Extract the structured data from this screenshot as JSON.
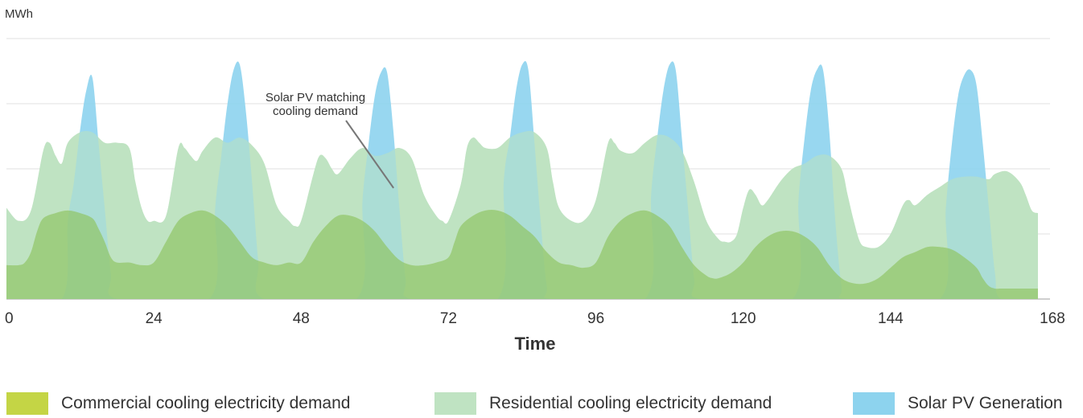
{
  "chart_data": {
    "type": "area",
    "ylabel": "MWh",
    "xlabel": "Time",
    "xlim": [
      0,
      168
    ],
    "ylim": [
      0,
      100
    ],
    "x_ticks": [
      "0",
      "24",
      "48",
      "72",
      "96",
      "120",
      "144",
      "168"
    ],
    "grid": true,
    "legend_position": "bottom",
    "annotation": {
      "text_lines": [
        "Solar PV matching",
        "cooling demand"
      ],
      "point": [
        62,
        38
      ]
    },
    "series": [
      {
        "name": "Solar PV Generation",
        "color": "#8dd3ee",
        "points": [
          [
            0,
            0
          ],
          [
            9,
            0
          ],
          [
            10,
            30
          ],
          [
            11,
            45
          ],
          [
            12,
            65
          ],
          [
            13,
            80
          ],
          [
            14,
            85
          ],
          [
            15,
            60
          ],
          [
            16,
            35
          ],
          [
            17,
            10
          ],
          [
            18,
            0
          ],
          [
            33,
            0
          ],
          [
            34,
            35
          ],
          [
            35,
            55
          ],
          [
            36,
            75
          ],
          [
            37,
            88
          ],
          [
            38,
            90
          ],
          [
            39,
            72
          ],
          [
            40,
            45
          ],
          [
            41,
            15
          ],
          [
            42,
            0
          ],
          [
            57,
            0
          ],
          [
            58,
            38
          ],
          [
            59,
            60
          ],
          [
            60,
            78
          ],
          [
            61,
            87
          ],
          [
            62,
            87
          ],
          [
            63,
            65
          ],
          [
            64,
            35
          ],
          [
            65,
            8
          ],
          [
            66,
            0
          ],
          [
            80,
            0
          ],
          [
            81,
            45
          ],
          [
            82,
            62
          ],
          [
            83,
            80
          ],
          [
            84,
            90
          ],
          [
            85,
            88
          ],
          [
            86,
            60
          ],
          [
            87,
            30
          ],
          [
            88,
            5
          ],
          [
            89,
            0
          ],
          [
            104,
            0
          ],
          [
            105,
            40
          ],
          [
            106,
            62
          ],
          [
            107,
            80
          ],
          [
            108,
            90
          ],
          [
            109,
            88
          ],
          [
            110,
            62
          ],
          [
            111,
            35
          ],
          [
            112,
            8
          ],
          [
            113,
            0
          ],
          [
            128,
            0
          ],
          [
            129,
            38
          ],
          [
            130,
            62
          ],
          [
            131,
            80
          ],
          [
            132,
            88
          ],
          [
            133,
            88
          ],
          [
            134,
            65
          ],
          [
            135,
            30
          ],
          [
            136,
            5
          ],
          [
            137,
            0
          ],
          [
            152,
            0
          ],
          [
            153,
            35
          ],
          [
            154,
            60
          ],
          [
            155,
            78
          ],
          [
            156,
            86
          ],
          [
            157,
            88
          ],
          [
            158,
            82
          ],
          [
            159,
            60
          ],
          [
            160,
            35
          ],
          [
            161,
            10
          ],
          [
            162,
            0
          ],
          [
            168,
            0
          ]
        ]
      },
      {
        "name": "Residential cooling electricity demand",
        "color": "#bfe3c2",
        "points": [
          [
            0,
            35
          ],
          [
            2,
            30
          ],
          [
            4,
            34
          ],
          [
            6,
            57
          ],
          [
            7,
            60
          ],
          [
            8,
            55
          ],
          [
            9,
            52
          ],
          [
            10,
            60
          ],
          [
            12,
            64
          ],
          [
            14,
            64
          ],
          [
            16,
            60
          ],
          [
            18,
            60
          ],
          [
            20,
            58
          ],
          [
            21,
            45
          ],
          [
            22,
            35
          ],
          [
            23,
            30
          ],
          [
            24,
            30
          ],
          [
            26,
            32
          ],
          [
            28,
            58
          ],
          [
            29,
            58
          ],
          [
            30,
            55
          ],
          [
            31,
            53
          ],
          [
            32,
            57
          ],
          [
            34,
            62
          ],
          [
            36,
            60
          ],
          [
            38,
            62
          ],
          [
            40,
            59
          ],
          [
            42,
            52
          ],
          [
            44,
            36
          ],
          [
            46,
            30
          ],
          [
            47,
            28
          ],
          [
            48,
            30
          ],
          [
            50,
            48
          ],
          [
            51,
            55
          ],
          [
            52,
            54
          ],
          [
            53,
            50
          ],
          [
            54,
            48
          ],
          [
            56,
            54
          ],
          [
            58,
            58
          ],
          [
            60,
            55
          ],
          [
            62,
            56
          ],
          [
            64,
            58
          ],
          [
            66,
            54
          ],
          [
            68,
            40
          ],
          [
            70,
            32
          ],
          [
            71,
            30
          ],
          [
            72,
            30
          ],
          [
            74,
            44
          ],
          [
            75,
            58
          ],
          [
            76,
            62
          ],
          [
            77,
            60
          ],
          [
            78,
            58
          ],
          [
            80,
            58
          ],
          [
            82,
            62
          ],
          [
            84,
            64
          ],
          [
            86,
            64
          ],
          [
            88,
            58
          ],
          [
            89,
            45
          ],
          [
            90,
            35
          ],
          [
            92,
            30
          ],
          [
            94,
            30
          ],
          [
            96,
            38
          ],
          [
            98,
            60
          ],
          [
            99,
            60
          ],
          [
            100,
            57
          ],
          [
            102,
            56
          ],
          [
            104,
            60
          ],
          [
            106,
            63
          ],
          [
            108,
            62
          ],
          [
            110,
            57
          ],
          [
            112,
            45
          ],
          [
            114,
            30
          ],
          [
            116,
            23
          ],
          [
            117,
            22
          ],
          [
            118,
            22
          ],
          [
            119,
            25
          ],
          [
            120,
            35
          ],
          [
            121,
            42
          ],
          [
            122,
            40
          ],
          [
            123,
            36
          ],
          [
            124,
            38
          ],
          [
            126,
            45
          ],
          [
            128,
            50
          ],
          [
            130,
            52
          ],
          [
            132,
            55
          ],
          [
            134,
            55
          ],
          [
            136,
            50
          ],
          [
            137,
            40
          ],
          [
            138,
            30
          ],
          [
            139,
            22
          ],
          [
            140,
            20
          ],
          [
            142,
            20
          ],
          [
            144,
            25
          ],
          [
            146,
            36
          ],
          [
            147,
            38
          ],
          [
            148,
            36
          ],
          [
            150,
            40
          ],
          [
            152,
            43
          ],
          [
            154,
            46
          ],
          [
            156,
            47
          ],
          [
            158,
            47
          ],
          [
            160,
            46
          ],
          [
            161,
            48
          ],
          [
            163,
            49
          ],
          [
            165,
            45
          ],
          [
            166,
            40
          ],
          [
            167,
            34
          ],
          [
            168,
            33
          ]
        ]
      },
      {
        "name": "Commercial cooling electricity demand",
        "color": "#c4d545",
        "points": [
          [
            0,
            13
          ],
          [
            2,
            13
          ],
          [
            3,
            14
          ],
          [
            4,
            18
          ],
          [
            5,
            26
          ],
          [
            6,
            31
          ],
          [
            8,
            33
          ],
          [
            10,
            34
          ],
          [
            12,
            33
          ],
          [
            14,
            31
          ],
          [
            15,
            27
          ],
          [
            16,
            22
          ],
          [
            17,
            16
          ],
          [
            18,
            14
          ],
          [
            20,
            14
          ],
          [
            22,
            13
          ],
          [
            24,
            14
          ],
          [
            26,
            22
          ],
          [
            28,
            30
          ],
          [
            30,
            33
          ],
          [
            32,
            34
          ],
          [
            34,
            32
          ],
          [
            36,
            28
          ],
          [
            38,
            22
          ],
          [
            40,
            16
          ],
          [
            42,
            14
          ],
          [
            44,
            13
          ],
          [
            46,
            14
          ],
          [
            48,
            14
          ],
          [
            50,
            22
          ],
          [
            52,
            28
          ],
          [
            54,
            32
          ],
          [
            56,
            32
          ],
          [
            58,
            30
          ],
          [
            60,
            26
          ],
          [
            62,
            20
          ],
          [
            64,
            15
          ],
          [
            66,
            13
          ],
          [
            68,
            13
          ],
          [
            70,
            14
          ],
          [
            72,
            16
          ],
          [
            73,
            22
          ],
          [
            74,
            28
          ],
          [
            76,
            32
          ],
          [
            78,
            34
          ],
          [
            80,
            34
          ],
          [
            82,
            32
          ],
          [
            84,
            28
          ],
          [
            86,
            24
          ],
          [
            88,
            18
          ],
          [
            90,
            14
          ],
          [
            92,
            13
          ],
          [
            94,
            12
          ],
          [
            96,
            14
          ],
          [
            98,
            24
          ],
          [
            100,
            30
          ],
          [
            102,
            33
          ],
          [
            104,
            34
          ],
          [
            106,
            32
          ],
          [
            108,
            28
          ],
          [
            110,
            20
          ],
          [
            112,
            13
          ],
          [
            114,
            9
          ],
          [
            115,
            8
          ],
          [
            116,
            8
          ],
          [
            118,
            10
          ],
          [
            120,
            14
          ],
          [
            122,
            20
          ],
          [
            124,
            24
          ],
          [
            126,
            26
          ],
          [
            128,
            26
          ],
          [
            130,
            24
          ],
          [
            132,
            20
          ],
          [
            134,
            13
          ],
          [
            136,
            8
          ],
          [
            138,
            6
          ],
          [
            140,
            6
          ],
          [
            142,
            8
          ],
          [
            144,
            12
          ],
          [
            146,
            16
          ],
          [
            148,
            18
          ],
          [
            150,
            20
          ],
          [
            152,
            20
          ],
          [
            154,
            19
          ],
          [
            156,
            16
          ],
          [
            158,
            12
          ],
          [
            159,
            8
          ],
          [
            160,
            5
          ],
          [
            161,
            4
          ],
          [
            162,
            4
          ],
          [
            164,
            4
          ],
          [
            166,
            4
          ],
          [
            168,
            4
          ]
        ]
      }
    ]
  },
  "legend": [
    {
      "label": "Commercial cooling electricity demand",
      "color": "#c4d545"
    },
    {
      "label": "Residential cooling electricity demand",
      "color": "#bfe3c2"
    },
    {
      "label": "Solar PV Generation",
      "color": "#8dd3ee"
    }
  ]
}
